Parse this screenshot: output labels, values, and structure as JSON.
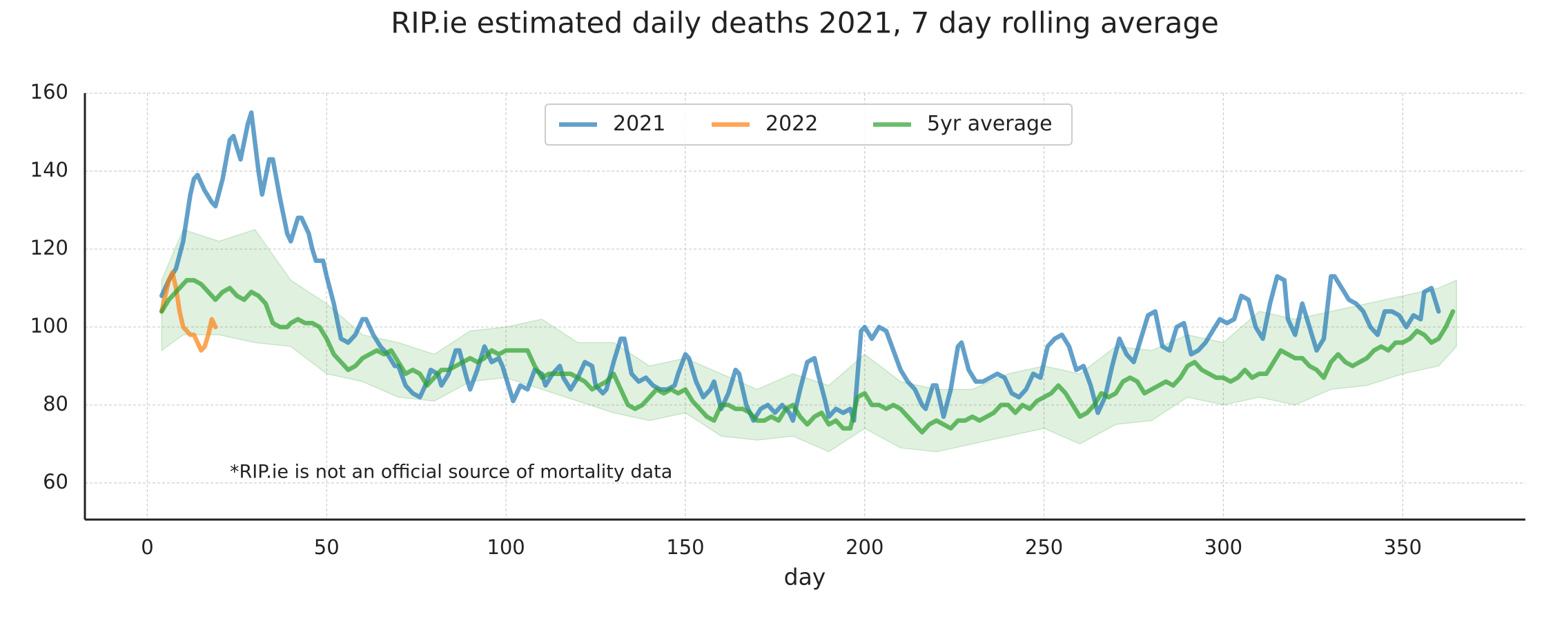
{
  "chart_data": {
    "type": "line",
    "title": "RIP.ie estimated daily deaths 2021, 7 day rolling average",
    "x_label": "day",
    "annotation": "*RIP.ie is not an official source of mortality data",
    "xlim": [
      -17.4,
      384.2
    ],
    "ylim": [
      50.6,
      160
    ],
    "xticks": [
      0,
      50,
      100,
      150,
      200,
      250,
      300,
      350
    ],
    "yticks": [
      60,
      80,
      100,
      120,
      140,
      160
    ],
    "grid": true,
    "legend": "upper center",
    "series": [
      {
        "name": "2021",
        "color": "#1f77b4",
        "x": [
          4,
          6,
          8,
          10,
          12,
          13,
          14,
          16,
          18,
          19,
          21,
          23,
          24,
          26,
          28,
          29,
          31,
          32,
          34,
          35,
          37,
          39,
          40,
          42,
          43,
          45,
          46,
          47,
          49,
          50,
          52,
          54,
          56,
          58,
          60,
          61,
          63,
          65,
          67,
          69,
          70,
          72,
          74,
          76,
          78,
          79,
          81,
          82,
          84,
          86,
          87,
          89,
          90,
          92,
          94,
          96,
          98,
          99,
          101,
          102,
          104,
          106,
          108,
          110,
          111,
          113,
          115,
          116,
          118,
          120,
          122,
          124,
          125,
          127,
          128,
          130,
          132,
          133,
          135,
          137,
          139,
          141,
          143,
          145,
          147,
          148,
          150,
          151,
          153,
          155,
          157,
          158,
          160,
          162,
          164,
          165,
          167,
          169,
          171,
          173,
          175,
          177,
          179,
          180,
          182,
          184,
          186,
          187,
          189,
          190,
          192,
          194,
          196,
          197,
          199,
          200,
          202,
          204,
          206,
          208,
          210,
          212,
          214,
          216,
          217,
          219,
          220,
          222,
          224,
          226,
          227,
          229,
          231,
          233,
          235,
          237,
          239,
          241,
          243,
          245,
          247,
          249,
          251,
          253,
          255,
          257,
          259,
          261,
          263,
          265,
          267,
          269,
          271,
          273,
          275,
          277,
          279,
          281,
          283,
          285,
          287,
          289,
          291,
          293,
          295,
          297,
          299,
          301,
          303,
          305,
          307,
          309,
          311,
          313,
          315,
          317,
          318,
          320,
          322,
          324,
          326,
          328,
          330,
          331,
          333,
          335,
          337,
          339,
          341,
          343,
          345,
          347,
          349,
          351,
          353,
          355,
          356,
          358,
          360
        ],
        "values": [
          108,
          112,
          115,
          122,
          134,
          138,
          139,
          135,
          132,
          131,
          138,
          148,
          149,
          143,
          152,
          155,
          140,
          134,
          143,
          143,
          133,
          124,
          122,
          128,
          128,
          124,
          120,
          117,
          117,
          113,
          106,
          97,
          96,
          98,
          102,
          102,
          98,
          95,
          93,
          90,
          90,
          85,
          83,
          82,
          86,
          89,
          88,
          85,
          88,
          94,
          94,
          87,
          84,
          89,
          95,
          91,
          92,
          90,
          84,
          81,
          85,
          84,
          89,
          88,
          85,
          88,
          90,
          87,
          84,
          87,
          91,
          90,
          85,
          83,
          84,
          91,
          97,
          97,
          88,
          86,
          87,
          85,
          84,
          84,
          85,
          88,
          93,
          92,
          86,
          82,
          84,
          86,
          79,
          83,
          89,
          88,
          80,
          76,
          79,
          80,
          78,
          80,
          78,
          76,
          84,
          91,
          92,
          88,
          81,
          77,
          79,
          78,
          79,
          76,
          99,
          100,
          97,
          100,
          99,
          94,
          89,
          86,
          84,
          80,
          79,
          85,
          85,
          77,
          84,
          95,
          96,
          89,
          86,
          86,
          87,
          88,
          87,
          83,
          82,
          84,
          88,
          87,
          95,
          97,
          98,
          95,
          89,
          90,
          85,
          78,
          82,
          90,
          97,
          93,
          91,
          97,
          103,
          104,
          95,
          94,
          100,
          101,
          93,
          94,
          96,
          99,
          102,
          101,
          102,
          108,
          107,
          100,
          97,
          106,
          113,
          112,
          102,
          98,
          106,
          100,
          94,
          97,
          113,
          113,
          110,
          107,
          106,
          104,
          100,
          98,
          104,
          104,
          103,
          100,
          103,
          102,
          109,
          110,
          104
        ]
      },
      {
        "name": "2022",
        "color": "#ff7f0e",
        "x": [
          4,
          5,
          6,
          7,
          8,
          9,
          10,
          11,
          12,
          13,
          14,
          15,
          16,
          17,
          18,
          19
        ],
        "values": [
          104,
          108,
          112,
          114,
          110,
          104,
          100,
          99,
          98,
          98,
          96,
          94,
          95,
          98,
          102,
          100
        ]
      },
      {
        "name": "5yr average",
        "color": "#2ca02c",
        "x": [
          4,
          6,
          8,
          10,
          11,
          13,
          15,
          17,
          19,
          21,
          23,
          25,
          27,
          29,
          31,
          33,
          35,
          37,
          39,
          40,
          42,
          44,
          46,
          48,
          50,
          52,
          54,
          56,
          58,
          60,
          62,
          64,
          66,
          68,
          70,
          72,
          74,
          76,
          78,
          80,
          82,
          84,
          86,
          88,
          90,
          92,
          94,
          96,
          98,
          100,
          102,
          104,
          106,
          108,
          110,
          112,
          114,
          116,
          118,
          120,
          122,
          124,
          126,
          128,
          130,
          132,
          134,
          136,
          138,
          140,
          142,
          144,
          146,
          148,
          150,
          152,
          154,
          156,
          158,
          160,
          162,
          164,
          166,
          168,
          170,
          172,
          174,
          176,
          178,
          180,
          182,
          184,
          186,
          188,
          190,
          192,
          194,
          196,
          198,
          200,
          202,
          204,
          206,
          208,
          210,
          212,
          214,
          216,
          218,
          220,
          222,
          224,
          226,
          228,
          230,
          232,
          234,
          236,
          238,
          240,
          242,
          244,
          246,
          248,
          250,
          252,
          254,
          256,
          258,
          260,
          262,
          264,
          266,
          268,
          270,
          272,
          274,
          276,
          278,
          280,
          282,
          284,
          286,
          288,
          290,
          292,
          294,
          296,
          298,
          300,
          302,
          304,
          306,
          308,
          310,
          312,
          314,
          316,
          318,
          320,
          322,
          324,
          326,
          328,
          330,
          332,
          334,
          336,
          338,
          340,
          342,
          344,
          346,
          348,
          350,
          352,
          354,
          356,
          358,
          360,
          362,
          364
        ],
        "values": [
          104,
          107,
          109,
          111,
          112,
          112,
          111,
          109,
          107,
          109,
          110,
          108,
          107,
          109,
          108,
          106,
          101,
          100,
          100,
          101,
          102,
          101,
          101,
          100,
          97,
          93,
          91,
          89,
          90,
          92,
          93,
          94,
          93,
          94,
          91,
          88,
          89,
          88,
          85,
          87,
          89,
          89,
          90,
          91,
          92,
          91,
          92,
          94,
          93,
          94,
          94,
          94,
          94,
          90,
          87,
          88,
          88,
          88,
          88,
          87,
          86,
          84,
          85,
          86,
          88,
          84,
          80,
          79,
          80,
          82,
          84,
          83,
          84,
          83,
          84,
          81,
          79,
          77,
          76,
          80,
          80,
          79,
          79,
          78,
          76,
          76,
          77,
          76,
          79,
          80,
          77,
          75,
          77,
          78,
          75,
          76,
          74,
          74,
          82,
          83,
          80,
          80,
          79,
          80,
          79,
          77,
          75,
          73,
          75,
          76,
          75,
          74,
          76,
          76,
          77,
          76,
          77,
          78,
          80,
          80,
          78,
          80,
          79,
          81,
          82,
          83,
          85,
          83,
          80,
          77,
          78,
          80,
          83,
          82,
          83,
          86,
          87,
          86,
          83,
          84,
          85,
          86,
          85,
          87,
          90,
          91,
          89,
          88,
          87,
          87,
          86,
          87,
          89,
          87,
          88,
          88,
          91,
          94,
          93,
          92,
          92,
          90,
          89,
          87,
          91,
          93,
          91,
          90,
          91,
          92,
          94,
          95,
          94,
          96,
          96,
          97,
          99,
          98,
          96,
          97,
          100,
          104
        ]
      }
    ],
    "band": {
      "color": "#2ca02c",
      "x": [
        4,
        10,
        20,
        30,
        40,
        50,
        60,
        70,
        80,
        90,
        100,
        110,
        120,
        130,
        140,
        150,
        160,
        170,
        180,
        190,
        200,
        210,
        220,
        230,
        240,
        250,
        260,
        270,
        280,
        290,
        300,
        310,
        320,
        330,
        340,
        350,
        360,
        365
      ],
      "lower": [
        94,
        98,
        98,
        96,
        95,
        88,
        86,
        82,
        81,
        86,
        87,
        84,
        81,
        78,
        76,
        78,
        72,
        71,
        72,
        68,
        74,
        69,
        68,
        70,
        72,
        74,
        70,
        75,
        76,
        82,
        80,
        82,
        80,
        84,
        85,
        88,
        90,
        95
      ],
      "upper": [
        112,
        125,
        122,
        125,
        112,
        106,
        98,
        96,
        93,
        99,
        100,
        102,
        96,
        96,
        90,
        92,
        88,
        84,
        88,
        85,
        93,
        86,
        84,
        84,
        88,
        90,
        88,
        95,
        94,
        98,
        96,
        104,
        102,
        104,
        106,
        108,
        110,
        112
      ]
    }
  }
}
